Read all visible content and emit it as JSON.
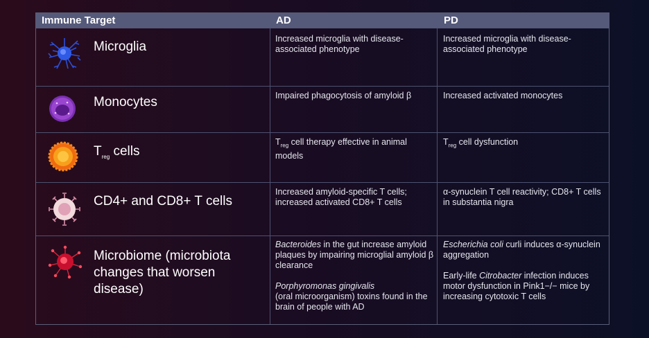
{
  "header": {
    "target": "Immune Target",
    "ad": "AD",
    "pd": "PD"
  },
  "rows": [
    {
      "name": "Microglia",
      "icon": "microglia-icon",
      "ad": "Increased microglia with disease-associated phenotype",
      "pd": "Increased microglia with disease-associated phenotype"
    },
    {
      "name": "Monocytes",
      "icon": "monocyte-icon",
      "ad": "Impaired phagocytosis of amyloid β",
      "pd": "Increased activated monocytes"
    },
    {
      "name_main": "T",
      "name_sub": "reg",
      "name_rest": " cells",
      "icon": "treg-cell-icon",
      "ad_main": "T",
      "ad_sub": "reg",
      "ad_rest": " cell therapy effective in animal models",
      "pd_main": "T",
      "pd_sub": "reg",
      "pd_rest": " cell dysfunction"
    },
    {
      "name": "CD4+ and CD8+ T cells",
      "icon": "t-cell-icon",
      "ad": "Increased amyloid-specific T cells; increased activated CD8+ T cells",
      "pd": "α-synuclein T cell reactivity; CD8+ T cells in substantia nigra"
    },
    {
      "name": "Microbiome (microbiota changes that worsen disease)",
      "icon": "microbe-icon",
      "ad1_italic": "Bacteroides",
      "ad1_rest": " in the gut increase amyloid plaques by impairing microglial amyloid β clearance",
      "ad2_italic": "Porphyromonas gingivalis",
      "ad2_rest": "(oral microorganism) toxins found in the brain of people with AD",
      "pd1_italic": "Escherichia coli",
      "pd1_rest": " curli induces α-synuclein aggregation",
      "pd2_pre": "Early-life ",
      "pd2_italic": "Citrobacter",
      "pd2_rest": " infection induces motor dysfunction in Pink1−/− mice by increasing cytotoxic T cells"
    }
  ]
}
